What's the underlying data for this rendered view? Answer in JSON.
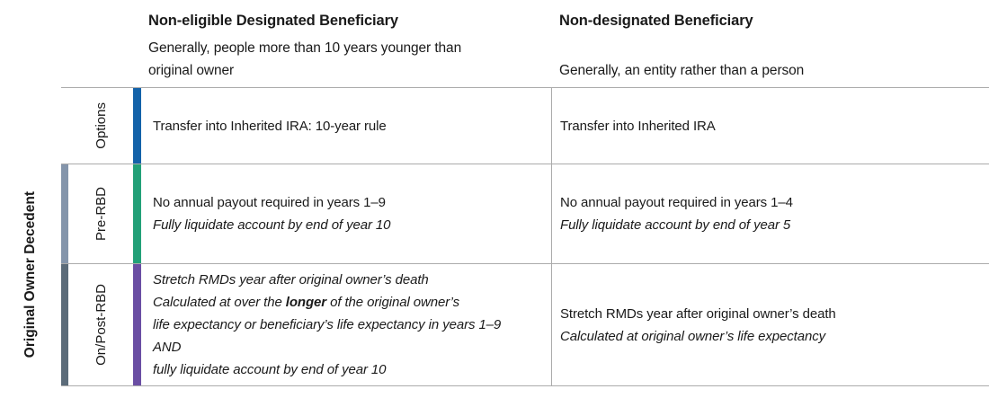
{
  "header": {
    "col1": {
      "title": "Non-eligible Designated Beneficiary",
      "subtitle_lines": [
        "Generally, people more than 10 years younger than",
        "original owner"
      ]
    },
    "col2": {
      "title": "Non-designated Beneficiary",
      "subtitle": "Generally, an entity rather than a person"
    }
  },
  "table": {
    "side_label": "Original Owner Decedent",
    "rows": [
      {
        "label": "Options",
        "col1_line1": "Transfer into Inherited IRA: 10-year rule",
        "col2_line1": "Transfer into Inherited IRA"
      },
      {
        "label": "Pre-RBD",
        "col1_line1": "No annual payout required in years 1–9",
        "col1_line2": "Fully liquidate account by end of year 10",
        "col2_line1": "No annual payout required in years 1–4",
        "col2_line2": "Fully liquidate account by end of year 5"
      },
      {
        "label": "On/Post-RBD",
        "col1_line1": "Stretch RMDs year after original owner’s death",
        "col1_line2_pre": "Calculated at over the ",
        "col1_line2_bold": "longer",
        "col1_line2_post": " of the original owner’s",
        "col1_line3": "life expectancy or beneficiary’s life expectancy in years 1–9",
        "col1_line4": "AND",
        "col1_line5": "fully liquidate account by end of year 10",
        "col2_line1": "Stretch RMDs year after original owner’s death",
        "col2_line2": "Calculated at original owner’s life expectancy"
      }
    ]
  },
  "colors": {
    "options_accent_bar": "#1362A9",
    "pre_rbd_accent_bar": "#22A078",
    "on_post_rbd_accent_bar": "#6A4EA3",
    "pre_rbd_side_bar": "#8495AB",
    "on_post_rbd_side_bar": "#5B6B79",
    "grid_line": "#ABABAB",
    "text": "#1A1A1A"
  }
}
